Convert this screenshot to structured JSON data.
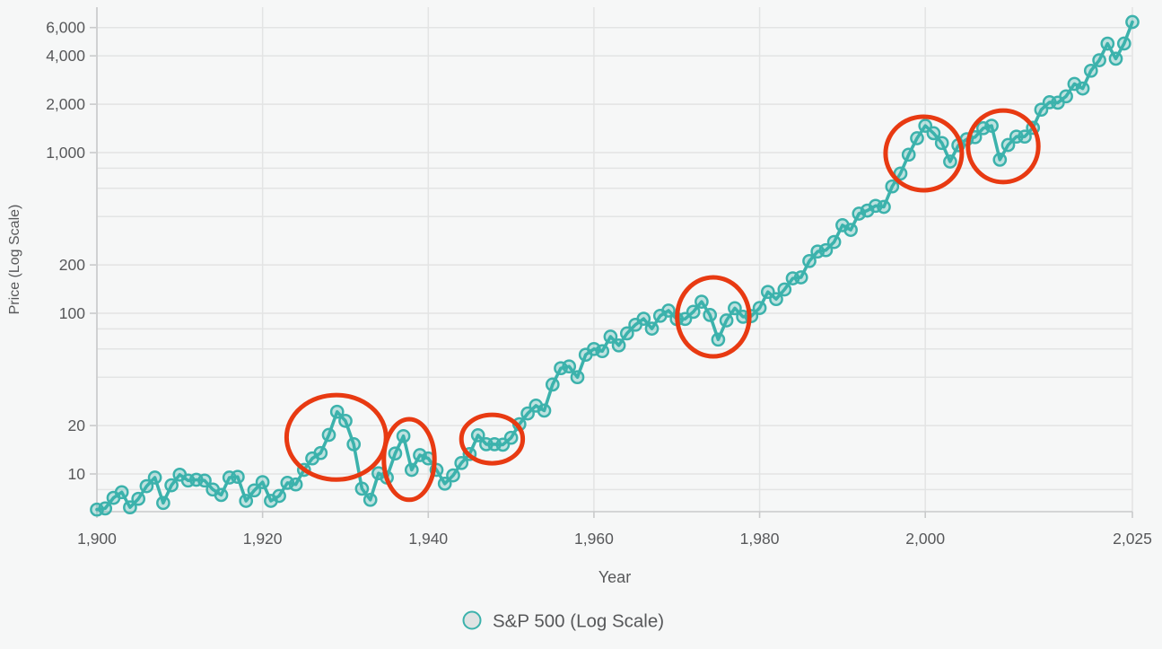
{
  "chart_data": {
    "type": "line",
    "title": "",
    "xlabel": "Year",
    "ylabel": "Price (Log Scale)",
    "legend_label": "S&P 500 (Log Scale)",
    "legend_position": "bottom-center",
    "grid": true,
    "x_scale": "linear",
    "y_scale": "log",
    "x_range": [
      1900,
      2025
    ],
    "y_range": [
      5.8,
      7800
    ],
    "x_ticks": [
      {
        "value": 1900,
        "label": "1,900"
      },
      {
        "value": 1920,
        "label": "1,920"
      },
      {
        "value": 1940,
        "label": "1,940"
      },
      {
        "value": 1960,
        "label": "1,960"
      },
      {
        "value": 1980,
        "label": "1,980"
      },
      {
        "value": 2000,
        "label": "2,000"
      },
      {
        "value": 2025,
        "label": "2,025"
      }
    ],
    "y_ticks": [
      {
        "value": 6000,
        "label": "6,000"
      },
      {
        "value": 4000,
        "label": "4,000"
      },
      {
        "value": 2000,
        "label": "2,000"
      },
      {
        "value": 1000,
        "label": "1,000"
      },
      {
        "value": 800,
        "label": ""
      },
      {
        "value": 600,
        "label": ""
      },
      {
        "value": 400,
        "label": ""
      },
      {
        "value": 200,
        "label": "200"
      },
      {
        "value": 100,
        "label": "100"
      },
      {
        "value": 80,
        "label": ""
      },
      {
        "value": 60,
        "label": ""
      },
      {
        "value": 40,
        "label": ""
      },
      {
        "value": 20,
        "label": "20"
      },
      {
        "value": 10,
        "label": "10"
      },
      {
        "value": 8,
        "label": ""
      }
    ],
    "series": [
      {
        "name": "S&P 500 (Log Scale)",
        "marker": "circle-open",
        "start_year": 1900,
        "values": [
          6.0,
          6.1,
          7.1,
          7.7,
          6.2,
          7.0,
          8.4,
          9.5,
          6.6,
          8.5,
          9.9,
          9.1,
          9.2,
          9.1,
          8.0,
          7.4,
          9.5,
          9.6,
          6.8,
          7.9,
          8.9,
          6.8,
          7.3,
          8.8,
          8.6,
          10.6,
          12.5,
          13.5,
          17.5,
          24.4,
          21.4,
          15.3,
          8.1,
          6.9,
          10.1,
          9.5,
          13.4,
          17.2,
          10.6,
          13.1,
          12.5,
          10.6,
          8.7,
          9.8,
          11.7,
          13.3,
          17.4,
          15.3,
          15.3,
          15.2,
          16.8,
          20.4,
          23.8,
          26.6,
          24.8,
          36.0,
          45.5,
          46.7,
          40.0,
          55.2,
          59.9,
          58.1,
          71.6,
          63.1,
          75.0,
          84.8,
          92.4,
          80.3,
          96.5,
          103.9,
          92.1,
          92.2,
          102.1,
          118.1,
          97.6,
          68.6,
          90.2,
          107.5,
          95.1,
          96.1,
          107.9,
          135.8,
          122.6,
          140.6,
          164.9,
          167.2,
          211.3,
          242.2,
          247.1,
          277.7,
          353.4,
          330.2,
          417.1,
          435.7,
          466.5,
          459.3,
          615.9,
          740.7,
          970.4,
          1229.2,
          1469.3,
          1320.3,
          1148.1,
          879.8,
          1111.9,
          1211.9,
          1248.3,
          1418.3,
          1468.4,
          903.3,
          1115.1,
          1257.6,
          1257.6,
          1426.2,
          1848.4,
          2058.9,
          2043.9,
          2238.8,
          2673.6,
          2506.9,
          3230.8,
          3756.1,
          4766.2,
          3839.5,
          4769.8,
          6500
        ]
      }
    ],
    "annotation_circles": [
      {
        "x_year": 1928.9,
        "y_value": 16.9,
        "rx_years": 6.0,
        "ry_log10": 0.263
      },
      {
        "x_year": 1937.7,
        "y_value": 12.3,
        "rx_years": 3.05,
        "ry_log10": 0.251
      },
      {
        "x_year": 1947.7,
        "y_value": 16.5,
        "rx_years": 3.7,
        "ry_log10": 0.151
      },
      {
        "x_year": 1974.4,
        "y_value": 95.0,
        "rx_years": 4.35,
        "ry_log10": 0.246
      },
      {
        "x_year": 1999.8,
        "y_value": 987.0,
        "rx_years": 4.6,
        "ry_log10": 0.229
      },
      {
        "x_year": 2009.4,
        "y_value": 1094.0,
        "rx_years": 4.25,
        "ry_log10": 0.223
      }
    ],
    "colors": {
      "line": "#3CB2AC",
      "marker_fill": "rgba(60,178,172,0.30)",
      "legend_marker_fill": "#DFE3E3",
      "annotation": "#E83A12",
      "grid": "#E3E4E4",
      "axis": "#C9CACB",
      "text": "#57585A",
      "background": "#F6F7F7"
    }
  }
}
